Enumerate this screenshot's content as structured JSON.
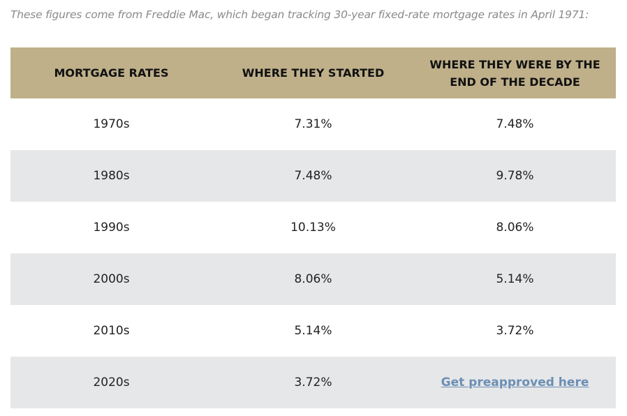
{
  "intro": "These figures come from Freddie Mac, which began tracking 30-year fixed-rate mortgage rates in April 1971:",
  "table": {
    "header": [
      "MORTGAGE RATES",
      "WHERE THEY STARTED",
      "WHERE THEY WERE BY THE END OF THE DECADE"
    ],
    "rows": [
      [
        "1970s",
        "7.31%",
        "7.48%"
      ],
      [
        "1980s",
        "7.48%",
        "9.78%"
      ],
      [
        "1990s",
        "10.13%",
        "8.06%"
      ],
      [
        "2000s",
        "8.06%",
        "5.14%"
      ],
      [
        "2010s",
        "5.14%",
        "3.72%"
      ],
      [
        "2020s",
        "3.72%",
        "Get preapproved here"
      ]
    ],
    "link_cell": [
      5,
      2
    ]
  }
}
